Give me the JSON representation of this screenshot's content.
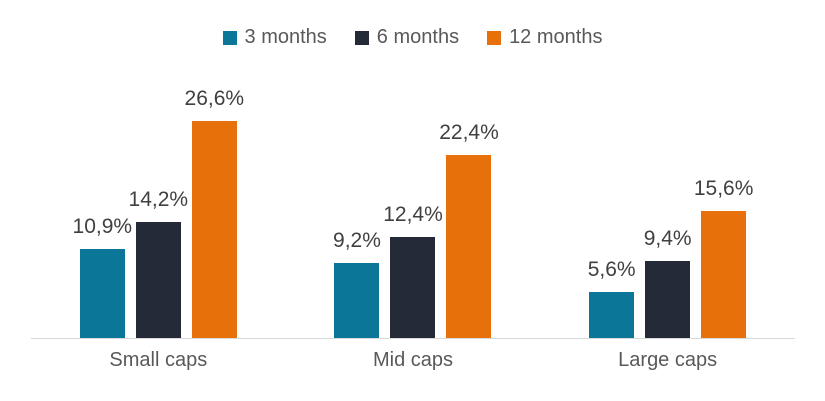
{
  "chart_data": {
    "type": "bar",
    "title": "",
    "xlabel": "",
    "ylabel": "",
    "categories": [
      "Small caps",
      "Mid caps",
      "Large caps"
    ],
    "series": [
      {
        "name": "3 months",
        "color": "#0B7697",
        "values": [
          10.9,
          9.2,
          5.6
        ],
        "labels": [
          "10,9%",
          "9,2%",
          "5,6%"
        ]
      },
      {
        "name": "6 months",
        "color": "#252A38",
        "values": [
          14.2,
          12.4,
          9.4
        ],
        "labels": [
          "14,2%",
          "12,4%",
          "9,4%"
        ]
      },
      {
        "name": "12 months",
        "color": "#E8700A",
        "values": [
          26.6,
          22.4,
          15.6
        ],
        "labels": [
          "26,6%",
          "22,4%",
          "15,6%"
        ]
      }
    ],
    "ylim": [
      0,
      30
    ],
    "grid": false,
    "legend_position": "top",
    "value_format": "percent-comma",
    "colors": {
      "background": "#FFFFFF",
      "axis_line": "#D9D9D9",
      "data_label": "#404040",
      "category_label": "#595959",
      "legend_label": "#595959"
    }
  }
}
